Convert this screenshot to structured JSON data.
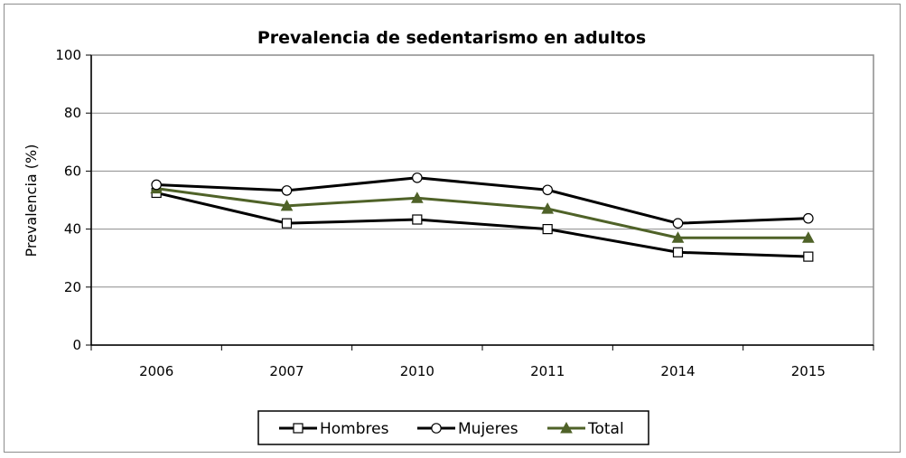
{
  "chart_data": {
    "type": "line",
    "title": "Prevalencia de sedentarismo en adultos",
    "xlabel": "",
    "ylabel": "Prevalencia (%)",
    "categories": [
      "2006",
      "2007",
      "2010",
      "2011",
      "2014",
      "2015"
    ],
    "ylim": [
      0,
      100
    ],
    "yticks": [
      0,
      20,
      40,
      60,
      80,
      100
    ],
    "grid": true,
    "legend_position": "bottom",
    "series": [
      {
        "name": "Hombres",
        "values": [
          52.5,
          42,
          43.3,
          40,
          32,
          30.5
        ],
        "color": "#000000",
        "marker": "square"
      },
      {
        "name": "Mujeres",
        "values": [
          55.3,
          53.3,
          57.7,
          53.5,
          42,
          43.7
        ],
        "color": "#000000",
        "marker": "circle"
      },
      {
        "name": "Total",
        "values": [
          54,
          48,
          50.7,
          47,
          37,
          37
        ],
        "color": "#4f6228",
        "marker": "triangle"
      }
    ]
  }
}
